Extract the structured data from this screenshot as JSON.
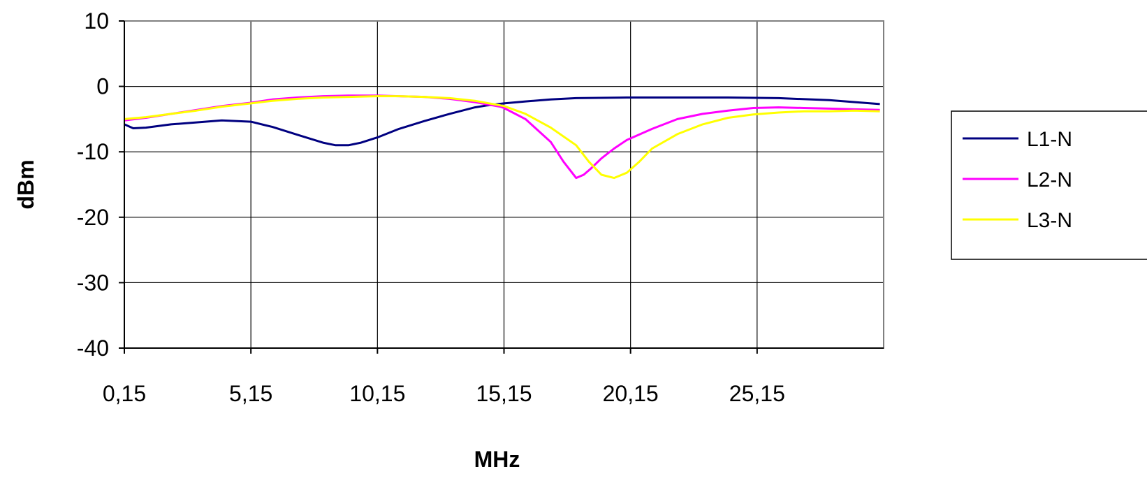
{
  "chart_data": {
    "type": "line",
    "title": "",
    "xlabel": "MHz",
    "ylabel": "dBm",
    "xlim": [
      0.15,
      30.15
    ],
    "ylim": [
      -40,
      10
    ],
    "x_ticks": [
      0.15,
      5.15,
      10.15,
      15.15,
      20.15,
      25.15
    ],
    "x_tick_labels": [
      "0,15",
      "5,15",
      "10,15",
      "15,15",
      "20,15",
      "25,15"
    ],
    "y_ticks": [
      10,
      0,
      -10,
      -20,
      -30,
      -40
    ],
    "y_tick_labels": [
      "10",
      "0",
      "-10",
      "-20",
      "-30",
      "-40"
    ],
    "grid": true,
    "legend_position": "right",
    "series": [
      {
        "name": "L1-N",
        "color": "#000080",
        "x": [
          0.15,
          0.5,
          1.0,
          2.0,
          3.0,
          4.0,
          5.15,
          6.0,
          7.0,
          8.0,
          8.5,
          9.0,
          9.5,
          10.15,
          11.0,
          12.0,
          13.0,
          14.0,
          14.5,
          15.15,
          16.0,
          17.0,
          18.0,
          20.0,
          22.0,
          24.0,
          26.0,
          28.0,
          30.0
        ],
        "y": [
          -5.8,
          -6.4,
          -6.3,
          -5.8,
          -5.5,
          -5.2,
          -5.4,
          -6.2,
          -7.4,
          -8.6,
          -9.0,
          -9.0,
          -8.6,
          -7.8,
          -6.5,
          -5.3,
          -4.2,
          -3.2,
          -2.9,
          -2.6,
          -2.3,
          -2.0,
          -1.8,
          -1.7,
          -1.7,
          -1.7,
          -1.8,
          -2.1,
          -2.7
        ]
      },
      {
        "name": "L2-N",
        "color": "#ff00ff",
        "x": [
          0.15,
          1.0,
          2.0,
          3.0,
          4.0,
          5.15,
          6.0,
          7.0,
          8.0,
          9.0,
          10.15,
          11.0,
          12.0,
          13.0,
          14.0,
          15.0,
          15.15,
          16.0,
          17.0,
          17.5,
          18.0,
          18.3,
          18.6,
          19.0,
          19.5,
          20.0,
          21.0,
          22.0,
          23.0,
          24.0,
          25.0,
          26.0,
          27.0,
          28.0,
          29.0,
          30.0
        ],
        "y": [
          -5.2,
          -4.8,
          -4.2,
          -3.6,
          -3.0,
          -2.5,
          -2.0,
          -1.7,
          -1.5,
          -1.4,
          -1.4,
          -1.5,
          -1.6,
          -1.9,
          -2.4,
          -3.1,
          -3.3,
          -5.0,
          -8.5,
          -11.5,
          -14.0,
          -13.5,
          -12.5,
          -11.0,
          -9.5,
          -8.2,
          -6.5,
          -5.0,
          -4.2,
          -3.7,
          -3.3,
          -3.2,
          -3.3,
          -3.4,
          -3.5,
          -3.6
        ]
      },
      {
        "name": "L3-N",
        "color": "#ffff00",
        "x": [
          0.15,
          1.0,
          2.0,
          3.0,
          4.0,
          5.15,
          6.0,
          7.0,
          8.0,
          9.0,
          10.15,
          11.0,
          12.0,
          13.0,
          14.0,
          15.15,
          16.0,
          17.0,
          18.0,
          18.5,
          19.0,
          19.5,
          20.0,
          20.5,
          21.0,
          22.0,
          23.0,
          24.0,
          25.0,
          26.0,
          27.0,
          28.0,
          29.0,
          30.0
        ],
        "y": [
          -5.0,
          -4.7,
          -4.2,
          -3.7,
          -3.1,
          -2.6,
          -2.2,
          -1.9,
          -1.7,
          -1.6,
          -1.5,
          -1.5,
          -1.6,
          -1.8,
          -2.2,
          -3.0,
          -4.2,
          -6.3,
          -9.0,
          -11.5,
          -13.5,
          -14.0,
          -13.2,
          -11.5,
          -9.5,
          -7.3,
          -5.8,
          -4.8,
          -4.3,
          -4.0,
          -3.8,
          -3.8,
          -3.7,
          -3.8
        ]
      }
    ]
  }
}
